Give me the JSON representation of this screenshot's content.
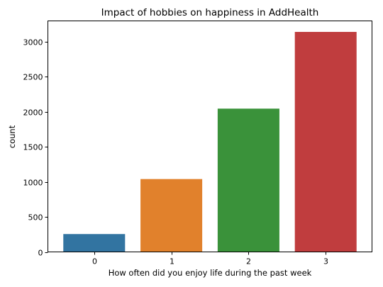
{
  "chart_data": {
    "type": "bar",
    "title": "Impact of hobbies on happiness in AddHealth",
    "xlabel": "How often did you enjoy life during the past week",
    "ylabel": "count",
    "categories": [
      "0",
      "1",
      "2",
      "3"
    ],
    "values": [
      255,
      1040,
      2045,
      3140
    ],
    "colors": [
      "#3274a1",
      "#e1812c",
      "#3a923a",
      "#c03d3e"
    ],
    "ylim": [
      0,
      3297
    ],
    "yticks": [
      0,
      500,
      1000,
      1500,
      2000,
      2500,
      3000
    ],
    "ytick_labels": [
      "0",
      "500",
      "1000",
      "1500",
      "2000",
      "2500",
      "3000"
    ],
    "grid": false,
    "legend": "none"
  }
}
